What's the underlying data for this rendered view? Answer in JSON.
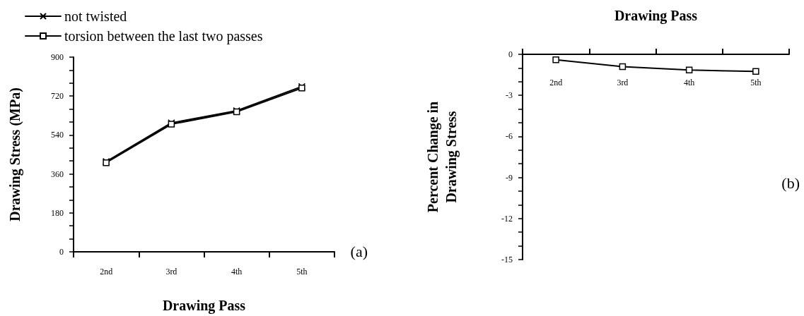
{
  "chart_data": [
    {
      "type": "line",
      "xlabel": "Drawing Pass",
      "ylabel": "Drawing Stress (MPa)",
      "categories": [
        "2nd",
        "3rd",
        "4th",
        "5th"
      ],
      "series": [
        {
          "name": "not twisted",
          "color": "#000000",
          "marker": "cross",
          "values": [
            417,
            596,
            652,
            764
          ]
        },
        {
          "name": "torsion between the last two passes",
          "color": "#000000",
          "marker": "square",
          "values": [
            412,
            590,
            647,
            757
          ]
        }
      ],
      "ylim": [
        0,
        900
      ],
      "yticks": [
        0,
        {
          "value": 60,
          "label": null
        },
        {
          "value": 120,
          "label": null
        },
        180,
        {
          "value": 240,
          "label": null
        },
        {
          "value": 300,
          "label": null
        },
        360,
        {
          "value": 420,
          "label": null
        },
        {
          "value": 480,
          "label": null
        },
        540,
        {
          "value": 600,
          "label": null
        },
        {
          "value": 660,
          "label": null
        },
        720,
        {
          "value": 780,
          "label": null
        },
        {
          "value": 840,
          "label": null
        },
        900
      ],
      "legend": "top left",
      "grid": false,
      "line_style": "solid",
      "annotations": [
        "(a)"
      ]
    },
    {
      "type": "line",
      "xlabel": "Drawing Pass",
      "ylabel": "Percent Change in\nDrawing Stress",
      "categories": [
        "2nd",
        "3rd",
        "4th",
        "5th"
      ],
      "series": [
        {
          "color": "#000000",
          "marker": "square",
          "values": [
            -0.4,
            -0.9,
            -1.15,
            -1.25
          ]
        }
      ],
      "ylim": [
        -15,
        0
      ],
      "yticks": [
        {
          "value": -15,
          "label": "-15"
        },
        {
          "value": -14,
          "label": null
        },
        {
          "value": -13,
          "label": null
        },
        {
          "value": -12,
          "label": "-12"
        },
        {
          "value": -11,
          "label": null
        },
        {
          "value": -10,
          "label": null
        },
        {
          "value": -9,
          "label": "-9"
        },
        {
          "value": -8,
          "label": null
        },
        {
          "value": -7,
          "label": null
        },
        {
          "value": -6,
          "label": "-6"
        },
        {
          "value": -5,
          "label": null
        },
        {
          "value": -4,
          "label": null
        },
        {
          "value": -3,
          "label": "-3"
        },
        {
          "value": -2,
          "label": null
        },
        {
          "value": -1,
          "label": null
        },
        0
      ],
      "legend": false,
      "grid": false,
      "line_style": "solid",
      "annotations": [
        "(b)"
      ]
    }
  ]
}
